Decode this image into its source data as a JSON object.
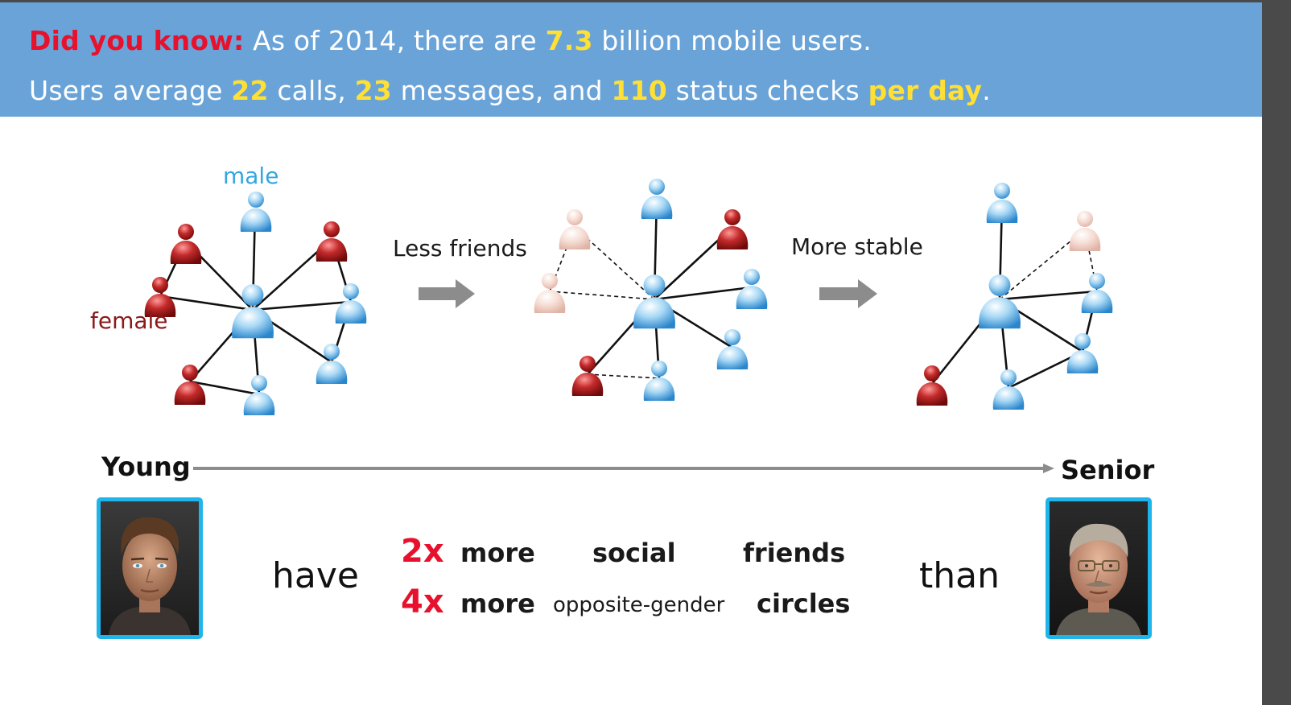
{
  "banner": {
    "line1": {
      "prefix": "Did you know:",
      "t1": " As of 2014, there are ",
      "v1": "7.3",
      "t2": " billion mobile users."
    },
    "line2": {
      "t1": "Users average ",
      "v1": "22",
      "t2": " calls, ",
      "v2": "23",
      "t3": " messages, and ",
      "v3": "110",
      "t4": " status checks ",
      "v4": "per day",
      "t5": "."
    }
  },
  "legend": {
    "male": "male",
    "female": "female"
  },
  "arrows": {
    "first": "Less friends",
    "second": "More stable"
  },
  "timeline": {
    "start": "Young",
    "end": "Senior"
  },
  "comparison": {
    "have": "have",
    "than": "than",
    "row1": {
      "factor": "2x",
      "more": "more",
      "qualifier": "social",
      "noun": "friends"
    },
    "row2": {
      "factor": "4x",
      "more": "more",
      "qualifier": "opposite-gender",
      "noun": "circles"
    }
  },
  "colors": {
    "banner": "#6aa3d8",
    "highlight_red": "#e8112d",
    "highlight_yellow": "#ffe033",
    "male_node": "#4aa8e0",
    "female_node": "#b01e1e",
    "faded_node": "#f0cfc4",
    "photo_border": "#1fb5ea"
  }
}
